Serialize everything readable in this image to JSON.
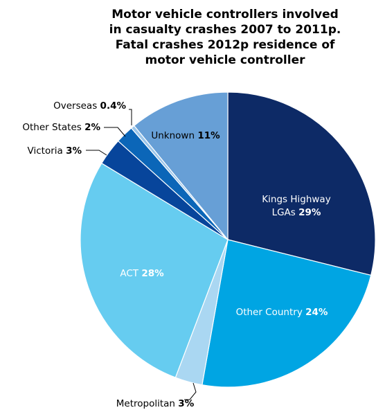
{
  "title_lines": [
    "Motor vehicle controllers involved",
    "in casualty crashes 2007 to 2011p.",
    "Fatal crashes 2012p residence of",
    "motor vehicle controller"
  ],
  "chart_data": {
    "type": "pie",
    "title": "Motor vehicle controllers involved in casualty crashes 2007 to 2011p. Fatal crashes 2012p residence of motor vehicle controller",
    "slices": [
      {
        "label": "Kings Highway LGAs",
        "value": 29,
        "value_label": "29%",
        "color": "#0d2a66"
      },
      {
        "label": "Other Country",
        "value": 24,
        "value_label": "24%",
        "color": "#00a5e3"
      },
      {
        "label": "Metropolitan",
        "value": 3,
        "value_label": "3%",
        "color": "#aad7f2"
      },
      {
        "label": "ACT",
        "value": 28,
        "value_label": "28%",
        "color": "#66ccf0"
      },
      {
        "label": "Victoria",
        "value": 3,
        "value_label": "3%",
        "color": "#07459b"
      },
      {
        "label": "Other States",
        "value": 2,
        "value_label": "2%",
        "color": "#0b66b8"
      },
      {
        "label": "Overseas",
        "value": 0.4,
        "value_label": "0.4%",
        "color": "#9cc6ea"
      },
      {
        "label": "Unknown",
        "value": 11,
        "value_label": "11%",
        "color": "#679fd6"
      }
    ]
  }
}
